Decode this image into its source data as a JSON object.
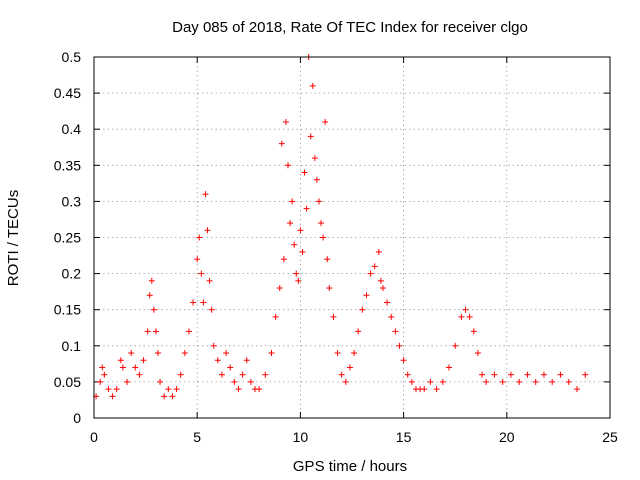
{
  "chart_data": {
    "type": "scatter",
    "title": "Day 085 of 2018, Rate Of TEC Index for receiver clgo",
    "xlabel": "GPS time / hours",
    "ylabel": "ROTI / TECUs",
    "xlim": [
      0,
      25
    ],
    "ylim": [
      0,
      0.5
    ],
    "xticks": [
      0,
      5,
      10,
      15,
      20,
      25
    ],
    "xtick_labels": [
      "0",
      "5",
      "10",
      "15",
      "20",
      "25"
    ],
    "yticks": [
      0,
      0.05,
      0.1,
      0.15,
      0.2,
      0.25,
      0.3,
      0.35,
      0.4,
      0.45,
      0.5
    ],
    "ytick_labels": [
      "0",
      "0.05",
      "0.1",
      "0.15",
      "0.2",
      "0.25",
      "0.3",
      "0.35",
      "0.4",
      "0.45",
      "0.5"
    ],
    "grid": true,
    "marker": "+",
    "color": "#ff0000",
    "series": [
      {
        "name": "ROTI",
        "points": [
          [
            0.1,
            0.03
          ],
          [
            0.3,
            0.05
          ],
          [
            0.4,
            0.07
          ],
          [
            0.5,
            0.06
          ],
          [
            0.7,
            0.04
          ],
          [
            0.9,
            0.03
          ],
          [
            1.1,
            0.04
          ],
          [
            1.3,
            0.08
          ],
          [
            1.4,
            0.07
          ],
          [
            1.6,
            0.05
          ],
          [
            1.8,
            0.09
          ],
          [
            2.0,
            0.07
          ],
          [
            2.2,
            0.06
          ],
          [
            2.4,
            0.08
          ],
          [
            2.6,
            0.12
          ],
          [
            2.7,
            0.17
          ],
          [
            2.8,
            0.19
          ],
          [
            2.9,
            0.15
          ],
          [
            3.0,
            0.12
          ],
          [
            3.1,
            0.09
          ],
          [
            3.2,
            0.05
          ],
          [
            3.4,
            0.03
          ],
          [
            3.6,
            0.04
          ],
          [
            3.8,
            0.03
          ],
          [
            4.0,
            0.04
          ],
          [
            4.2,
            0.06
          ],
          [
            4.4,
            0.09
          ],
          [
            4.6,
            0.12
          ],
          [
            4.8,
            0.16
          ],
          [
            5.0,
            0.22
          ],
          [
            5.1,
            0.25
          ],
          [
            5.2,
            0.2
          ],
          [
            5.3,
            0.16
          ],
          [
            5.4,
            0.31
          ],
          [
            5.5,
            0.26
          ],
          [
            5.6,
            0.19
          ],
          [
            5.7,
            0.15
          ],
          [
            5.8,
            0.1
          ],
          [
            6.0,
            0.08
          ],
          [
            6.2,
            0.06
          ],
          [
            6.4,
            0.09
          ],
          [
            6.6,
            0.07
          ],
          [
            6.8,
            0.05
          ],
          [
            7.0,
            0.04
          ],
          [
            7.2,
            0.06
          ],
          [
            7.4,
            0.08
          ],
          [
            7.6,
            0.05
          ],
          [
            7.8,
            0.04
          ],
          [
            8.0,
            0.04
          ],
          [
            8.3,
            0.06
          ],
          [
            8.6,
            0.09
          ],
          [
            8.8,
            0.14
          ],
          [
            9.0,
            0.18
          ],
          [
            9.1,
            0.38
          ],
          [
            9.2,
            0.22
          ],
          [
            9.3,
            0.41
          ],
          [
            9.4,
            0.35
          ],
          [
            9.5,
            0.27
          ],
          [
            9.6,
            0.3
          ],
          [
            9.7,
            0.24
          ],
          [
            9.8,
            0.2
          ],
          [
            9.9,
            0.19
          ],
          [
            10.0,
            0.26
          ],
          [
            10.1,
            0.23
          ],
          [
            10.2,
            0.34
          ],
          [
            10.3,
            0.29
          ],
          [
            10.4,
            0.5
          ],
          [
            10.5,
            0.39
          ],
          [
            10.6,
            0.46
          ],
          [
            10.7,
            0.36
          ],
          [
            10.8,
            0.33
          ],
          [
            10.9,
            0.3
          ],
          [
            11.0,
            0.27
          ],
          [
            11.1,
            0.25
          ],
          [
            11.2,
            0.41
          ],
          [
            11.3,
            0.22
          ],
          [
            11.4,
            0.18
          ],
          [
            11.6,
            0.14
          ],
          [
            11.8,
            0.09
          ],
          [
            12.0,
            0.06
          ],
          [
            12.2,
            0.05
          ],
          [
            12.4,
            0.07
          ],
          [
            12.6,
            0.09
          ],
          [
            12.8,
            0.12
          ],
          [
            13.0,
            0.15
          ],
          [
            13.2,
            0.17
          ],
          [
            13.4,
            0.2
          ],
          [
            13.6,
            0.21
          ],
          [
            13.8,
            0.23
          ],
          [
            13.9,
            0.19
          ],
          [
            14.0,
            0.18
          ],
          [
            14.2,
            0.16
          ],
          [
            14.4,
            0.14
          ],
          [
            14.6,
            0.12
          ],
          [
            14.8,
            0.1
          ],
          [
            15.0,
            0.08
          ],
          [
            15.2,
            0.06
          ],
          [
            15.4,
            0.05
          ],
          [
            15.6,
            0.04
          ],
          [
            15.8,
            0.04
          ],
          [
            16.0,
            0.04
          ],
          [
            16.3,
            0.05
          ],
          [
            16.6,
            0.04
          ],
          [
            16.9,
            0.05
          ],
          [
            17.2,
            0.07
          ],
          [
            17.5,
            0.1
          ],
          [
            17.8,
            0.14
          ],
          [
            18.0,
            0.15
          ],
          [
            18.2,
            0.14
          ],
          [
            18.4,
            0.12
          ],
          [
            18.6,
            0.09
          ],
          [
            18.8,
            0.06
          ],
          [
            19.0,
            0.05
          ],
          [
            19.4,
            0.06
          ],
          [
            19.8,
            0.05
          ],
          [
            20.2,
            0.06
          ],
          [
            20.6,
            0.05
          ],
          [
            21.0,
            0.06
          ],
          [
            21.4,
            0.05
          ],
          [
            21.8,
            0.06
          ],
          [
            22.2,
            0.05
          ],
          [
            22.6,
            0.06
          ],
          [
            23.0,
            0.05
          ],
          [
            23.4,
            0.04
          ],
          [
            23.8,
            0.06
          ]
        ]
      }
    ]
  }
}
